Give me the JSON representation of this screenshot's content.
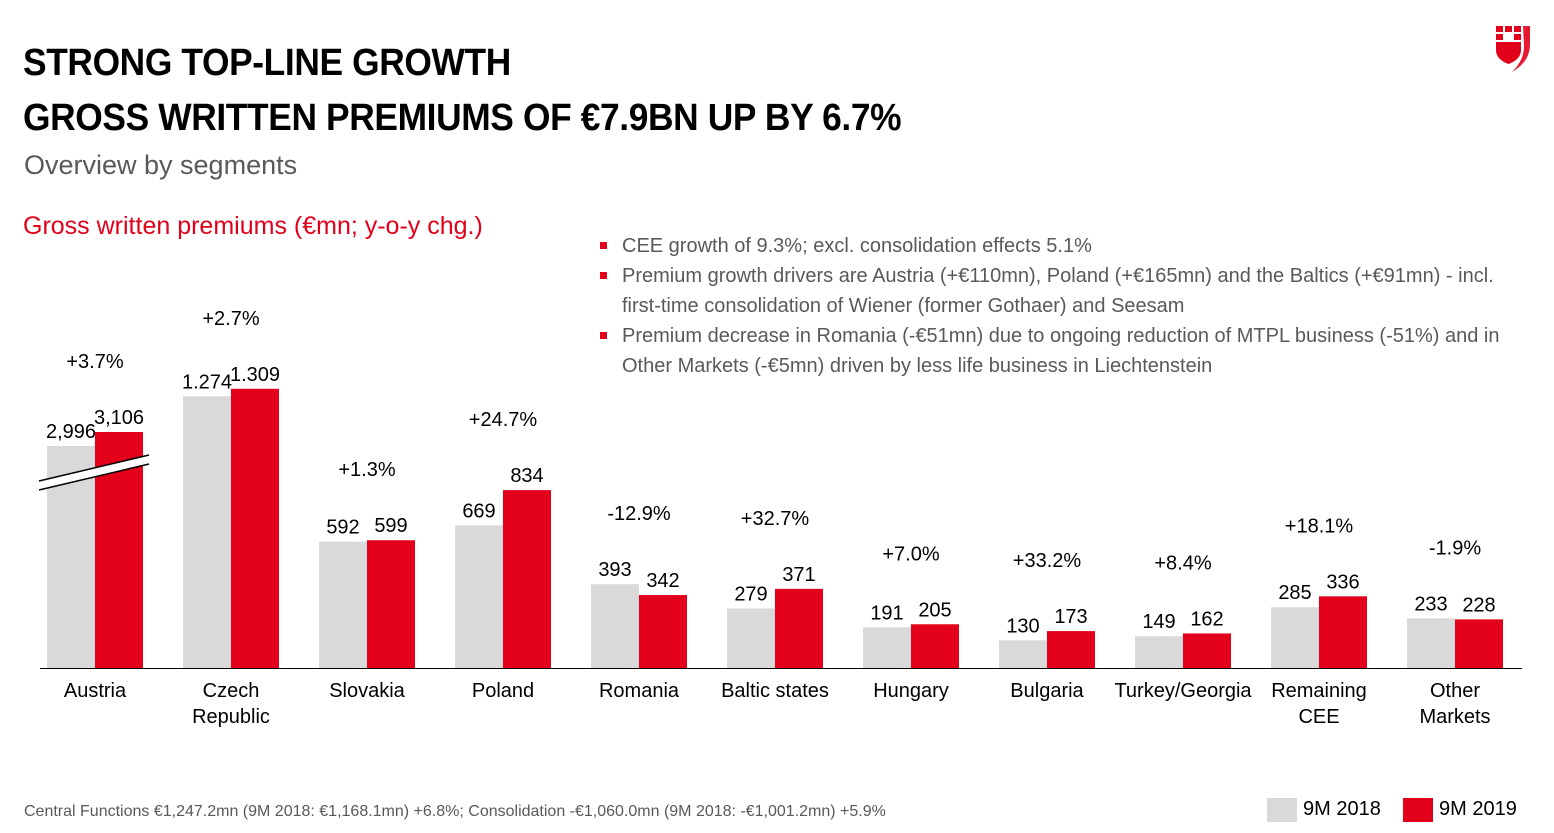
{
  "header": {
    "title_line1": "STRONG TOP-LINE GROWTH",
    "title_line2": "GROSS WRITTEN PREMIUMS OF €7.9BN UP BY 6.7%",
    "subtitle": "Overview by segments"
  },
  "chart_label": "Gross written premiums (€mn; y-o-y chg.)",
  "bullets": [
    "CEE growth of 9.3%; excl. consolidation effects 5.1%",
    "Premium growth drivers are Austria (+€110mn), Poland (+€165mn) and the Baltics (+€91mn) - incl. first-time consolidation of Wiener (former Gothaer) and Seesam",
    "Premium decrease in Romania (-€51mn) due to ongoing reduction of MTPL business (-51%) and in Other Markets (-€5mn) driven by less life business in Liechtenstein"
  ],
  "footnote": "Central Functions €1,247.2mn (9M 2018: €1,168.1mn) +6.8%; Consolidation -€1,060.0mn (9M 2018: -€1,001.2mn) +5.9%",
  "legend": {
    "item1": "9M 2018",
    "item2": "9M 2019"
  },
  "colors": {
    "accent": "#e2001a",
    "grey_bar": "#d9d9d9",
    "text_grey": "#595959"
  },
  "logo_icon": "shield-logo-icon",
  "chart_data": {
    "type": "bar",
    "title": "Gross written premiums (€mn; y-o-y chg.)",
    "categories": [
      [
        "Austria"
      ],
      [
        "Czech",
        "Republic"
      ],
      [
        "Slovakia"
      ],
      [
        "Poland"
      ],
      [
        "Romania"
      ],
      [
        "Baltic states"
      ],
      [
        "Hungary"
      ],
      [
        "Bulgaria"
      ],
      [
        "Turkey/Georgia"
      ],
      [
        "Remaining",
        "CEE"
      ],
      [
        "Other",
        "Markets"
      ]
    ],
    "series": [
      {
        "name": "9M 2018",
        "values": [
          2996,
          1274,
          592,
          669,
          393,
          279,
          191,
          130,
          149,
          285,
          233
        ],
        "labels": [
          "2,996",
          "1.274",
          "592",
          "669",
          "393",
          "279",
          "191",
          "130",
          "149",
          "285",
          "233"
        ]
      },
      {
        "name": "9M 2019",
        "values": [
          3106,
          1309,
          599,
          834,
          342,
          371,
          205,
          173,
          162,
          336,
          228
        ],
        "labels": [
          "3,106",
          "1.309",
          "599",
          "834",
          "342",
          "371",
          "205",
          "173",
          "162",
          "336",
          "228"
        ]
      }
    ],
    "changes": [
      "+3.7%",
      "+2.7%",
      "+1.3%",
      "+24.7%",
      "-12.9%",
      "+32.7%",
      "+7.0%",
      "+33.2%",
      "+8.4%",
      "+18.1%",
      "-1.9%"
    ],
    "broken_axis_category": "Austria",
    "grid": false,
    "legend_position": "bottom-right"
  }
}
